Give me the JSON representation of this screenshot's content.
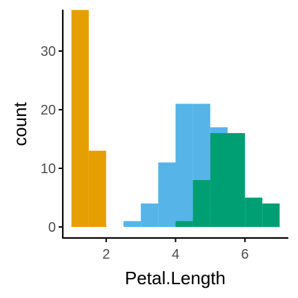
{
  "chart_data": {
    "type": "bar",
    "histogram": true,
    "xlabel": "Petal.Length",
    "ylabel": "count",
    "xlim": [
      0.75,
      7.25
    ],
    "ylim": [
      0,
      38
    ],
    "x_ticks": [
      2,
      4,
      6
    ],
    "y_ticks": [
      0,
      10,
      20,
      30
    ],
    "grid": false,
    "legend": "none",
    "bin_edges": [
      1.0,
      1.5,
      2.0,
      2.5,
      3.0,
      3.5,
      4.0,
      4.5,
      5.0,
      5.5,
      6.0,
      6.5,
      7.0
    ],
    "series": [
      {
        "color": "#E69F00",
        "values": [
          37,
          13,
          0,
          0,
          0,
          0,
          0,
          0,
          0,
          0,
          0,
          0
        ]
      },
      {
        "color": "#56B4E9",
        "values": [
          0,
          0,
          0,
          1,
          4,
          11,
          21,
          21,
          17,
          0,
          0,
          0
        ]
      },
      {
        "color": "#009E73",
        "values": [
          0,
          0,
          0,
          0,
          0,
          0,
          1,
          8,
          16,
          16,
          5,
          4
        ]
      }
    ]
  }
}
